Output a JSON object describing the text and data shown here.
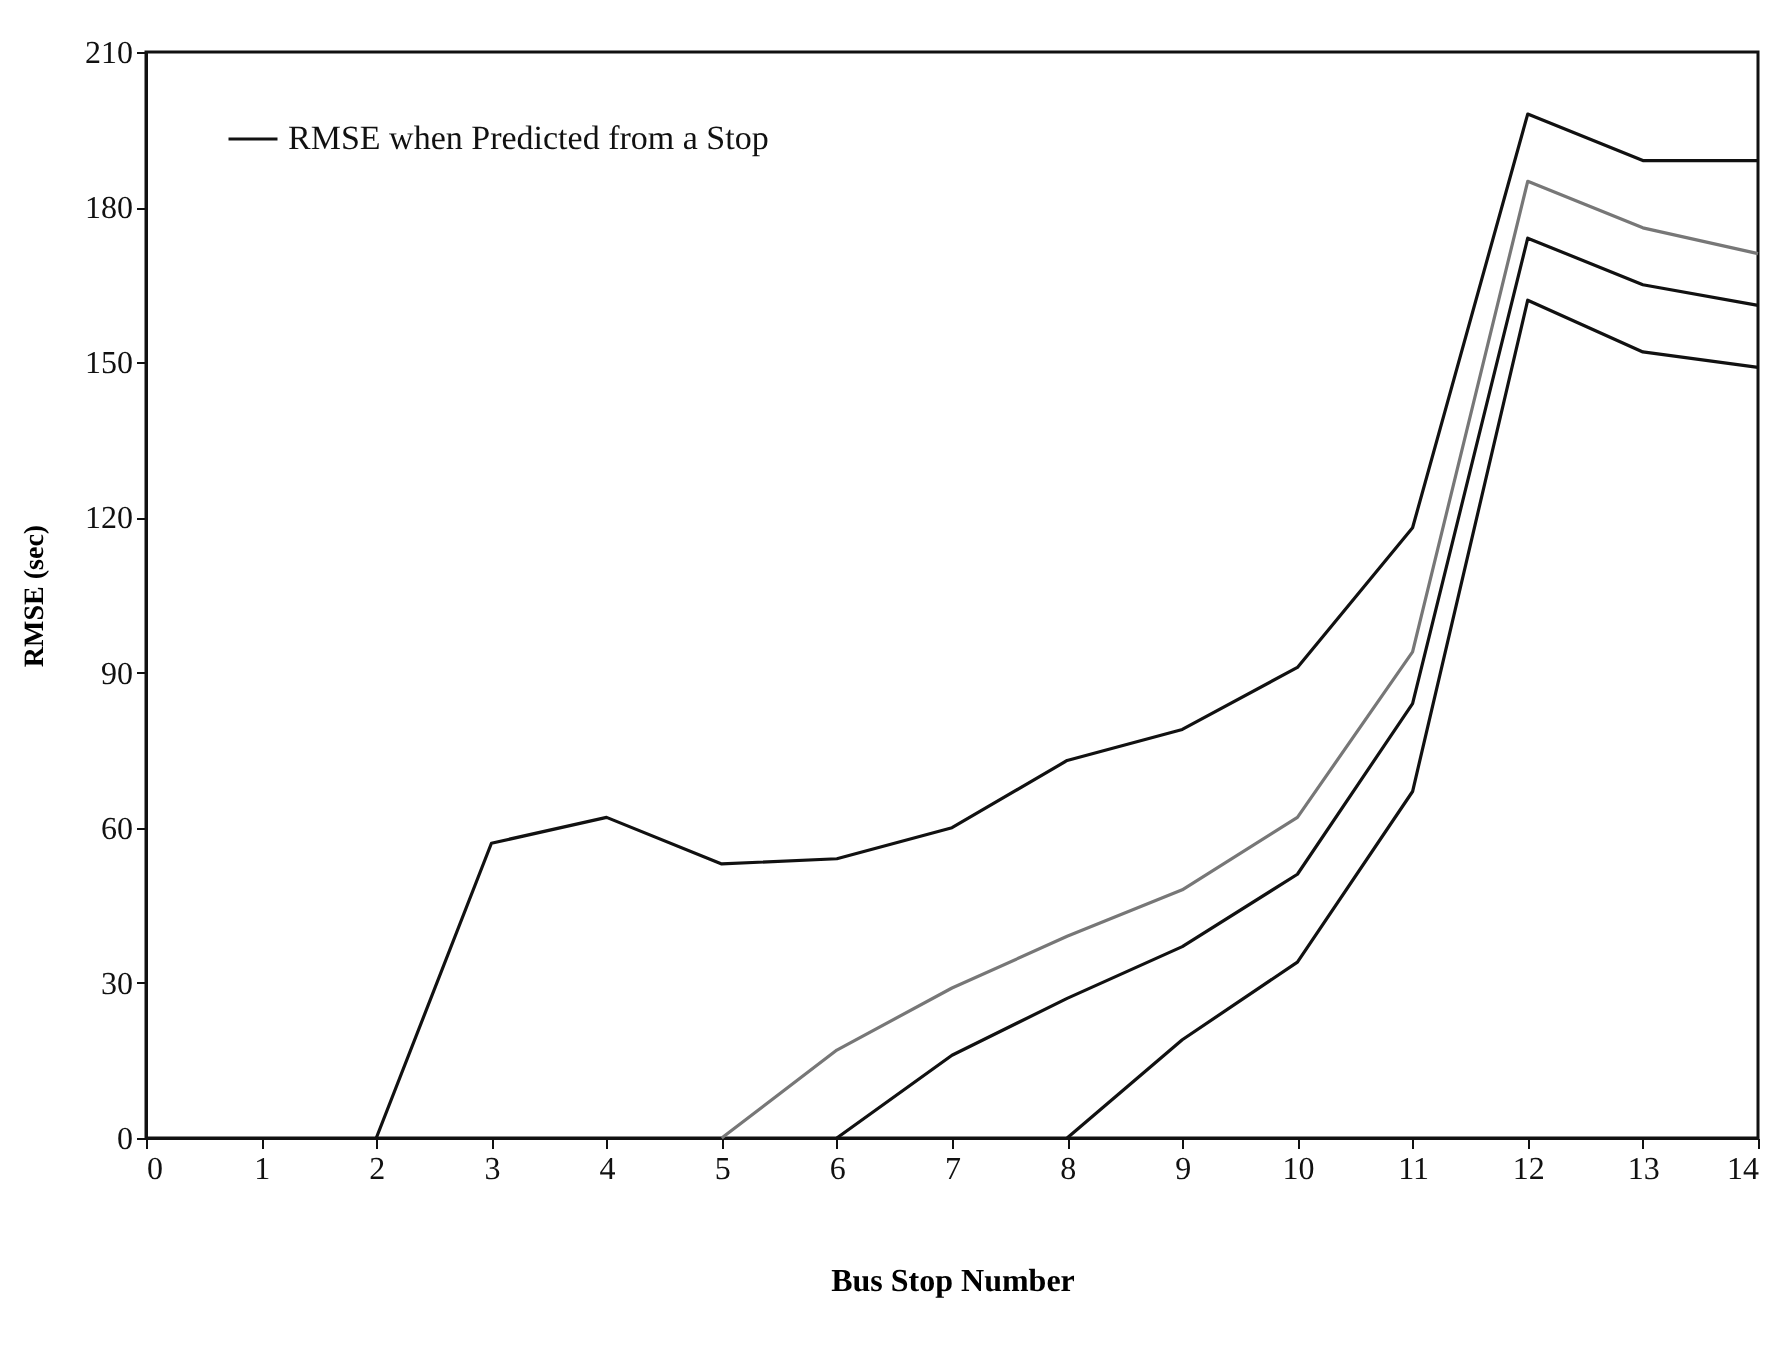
{
  "chart_data": {
    "type": "line",
    "xlabel": "Bus Stop Number",
    "ylabel": "RMSE  (sec)",
    "xlim": [
      0,
      14
    ],
    "xticks": [
      0,
      1,
      2,
      3,
      4,
      5,
      6,
      7,
      8,
      9,
      10,
      11,
      12,
      13,
      14
    ],
    "ylim": [
      0,
      210
    ],
    "yticks": [
      0,
      30,
      60,
      90,
      120,
      150,
      180,
      210
    ],
    "grid": false,
    "legend": "top left",
    "marker": "none",
    "line_style": "solid",
    "series": [
      {
        "name": "RMSE when Predicted  from a Stop",
        "color": "#111111",
        "x": [
          2,
          3,
          4,
          5,
          6,
          7,
          8,
          9,
          10,
          11,
          12,
          13,
          14
        ],
        "values": [
          0,
          57,
          62,
          53,
          54,
          60,
          73,
          79,
          91,
          118,
          198,
          189,
          189
        ]
      },
      {
        "color": "#777777",
        "x": [
          5,
          6,
          7,
          8,
          9,
          10,
          11,
          12,
          13,
          14
        ],
        "values": [
          0,
          17,
          29,
          39,
          48,
          62,
          94,
          185,
          176,
          171
        ]
      },
      {
        "color": "#111111",
        "x": [
          6,
          7,
          8,
          9,
          10,
          11,
          12,
          13,
          14
        ],
        "values": [
          0,
          16,
          27,
          37,
          51,
          84,
          174,
          165,
          161
        ]
      },
      {
        "color": "#111111",
        "x": [
          8,
          9,
          10,
          11,
          12,
          13,
          14
        ],
        "values": [
          0,
          19,
          34,
          67,
          162,
          152,
          149
        ]
      }
    ]
  }
}
